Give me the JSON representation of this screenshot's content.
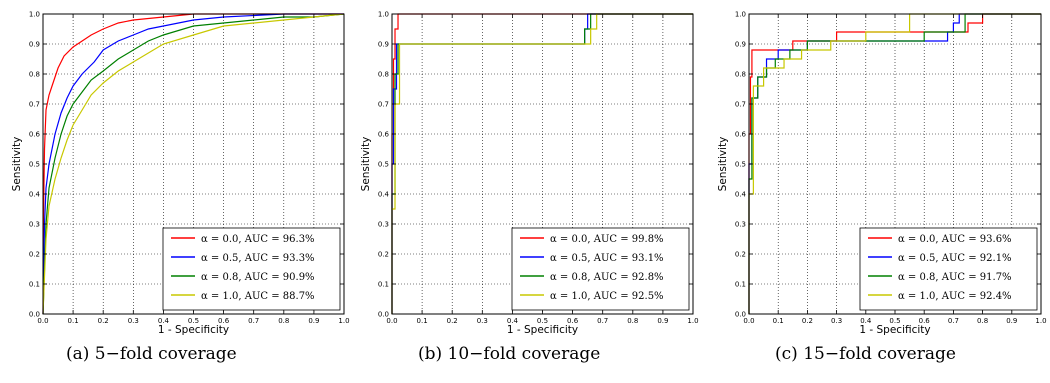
{
  "colors": {
    "alpha_0_0": "#ff0000",
    "alpha_0_5": "#0000ff",
    "alpha_0_8": "#008000",
    "alpha_1_0": "#c8c800",
    "grid": "#000000"
  },
  "captions": [
    "(a) 5−fold coverage",
    "(b) 10−fold coverage",
    "(c) 15−fold coverage"
  ],
  "chart_data": [
    {
      "type": "line",
      "xlabel": "1 - Specificity",
      "ylabel": "Sensitivity",
      "xlim": [
        0,
        1
      ],
      "ylim": [
        0,
        1
      ],
      "xticks": [
        "0.0",
        "0.1",
        "0.2",
        "0.3",
        "0.4",
        "0.5",
        "0.6",
        "0.7",
        "0.8",
        "0.9",
        "1.0"
      ],
      "yticks": [
        "0.0",
        "0.1",
        "0.2",
        "0.3",
        "0.4",
        "0.5",
        "0.6",
        "0.7",
        "0.8",
        "0.9",
        "1.0"
      ],
      "grid": true,
      "legend_position": "lower-right",
      "series": [
        {
          "name": "α = 0.0, AUC = 96.3%",
          "color": "#ff0000",
          "x": [
            0,
            0.002,
            0.005,
            0.01,
            0.02,
            0.03,
            0.05,
            0.07,
            0.1,
            0.13,
            0.16,
            0.2,
            0.25,
            0.3,
            0.4,
            0.5,
            0.6,
            0.8,
            1.0
          ],
          "y": [
            0,
            0.35,
            0.55,
            0.68,
            0.73,
            0.76,
            0.82,
            0.86,
            0.89,
            0.91,
            0.93,
            0.95,
            0.97,
            0.98,
            0.99,
            1.0,
            1.0,
            1.0,
            1.0
          ]
        },
        {
          "name": "α = 0.5, AUC = 93.3%",
          "color": "#0000ff",
          "x": [
            0,
            0.005,
            0.01,
            0.02,
            0.04,
            0.06,
            0.08,
            0.1,
            0.13,
            0.17,
            0.2,
            0.25,
            0.3,
            0.35,
            0.4,
            0.5,
            0.6,
            0.8,
            1.0
          ],
          "y": [
            0,
            0.3,
            0.42,
            0.5,
            0.6,
            0.67,
            0.72,
            0.76,
            0.8,
            0.84,
            0.88,
            0.91,
            0.93,
            0.95,
            0.96,
            0.98,
            0.99,
            1.0,
            1.0
          ]
        },
        {
          "name": "α = 0.8, AUC = 90.9%",
          "color": "#008000",
          "x": [
            0,
            0.01,
            0.02,
            0.04,
            0.06,
            0.08,
            0.1,
            0.13,
            0.16,
            0.2,
            0.25,
            0.3,
            0.35,
            0.4,
            0.5,
            0.6,
            0.7,
            0.8,
            0.9,
            1.0
          ],
          "y": [
            0,
            0.3,
            0.42,
            0.52,
            0.6,
            0.66,
            0.7,
            0.74,
            0.78,
            0.81,
            0.85,
            0.88,
            0.91,
            0.93,
            0.96,
            0.97,
            0.98,
            0.99,
            0.99,
            1.0
          ]
        },
        {
          "name": "α = 1.0, AUC = 88.7%",
          "color": "#c8c800",
          "x": [
            0,
            0.01,
            0.02,
            0.04,
            0.06,
            0.08,
            0.1,
            0.13,
            0.16,
            0.2,
            0.25,
            0.3,
            0.35,
            0.4,
            0.5,
            0.6,
            0.7,
            0.8,
            0.9,
            1.0
          ],
          "y": [
            0,
            0.25,
            0.36,
            0.45,
            0.52,
            0.58,
            0.63,
            0.68,
            0.73,
            0.77,
            0.81,
            0.84,
            0.87,
            0.9,
            0.93,
            0.96,
            0.97,
            0.98,
            0.99,
            1.0
          ]
        }
      ]
    },
    {
      "type": "line",
      "xlabel": "1 - Specificity",
      "ylabel": "Sensitivity",
      "xlim": [
        0,
        1
      ],
      "ylim": [
        0,
        1
      ],
      "xticks": [
        "0.0",
        "0.1",
        "0.2",
        "0.3",
        "0.4",
        "0.5",
        "0.6",
        "0.7",
        "0.8",
        "0.9",
        "1.0"
      ],
      "yticks": [
        "0.0",
        "0.1",
        "0.2",
        "0.3",
        "0.4",
        "0.5",
        "0.6",
        "0.7",
        "0.8",
        "0.9",
        "1.0"
      ],
      "grid": true,
      "legend_position": "lower-right",
      "series": [
        {
          "name": "α = 0.0, AUC = 99.8%",
          "color": "#ff0000",
          "x": [
            0,
            0,
            0.005,
            0.005,
            0.01,
            0.01,
            0.02,
            0.02,
            1.0
          ],
          "y": [
            0,
            0.6,
            0.6,
            0.85,
            0.85,
            0.95,
            0.95,
            1.0,
            1.0
          ]
        },
        {
          "name": "α = 0.5, AUC = 93.1%",
          "color": "#0000ff",
          "x": [
            0,
            0,
            0.005,
            0.005,
            0.015,
            0.015,
            0.64,
            0.64,
            0.65,
            0.65,
            1.0
          ],
          "y": [
            0,
            0.5,
            0.5,
            0.75,
            0.75,
            0.9,
            0.9,
            0.95,
            0.95,
            1.0,
            1.0
          ]
        },
        {
          "name": "α = 0.8, AUC = 92.8%",
          "color": "#008000",
          "x": [
            0,
            0,
            0.01,
            0.01,
            0.02,
            0.02,
            0.64,
            0.64,
            0.66,
            0.66,
            1.0
          ],
          "y": [
            0,
            0.4,
            0.4,
            0.8,
            0.8,
            0.9,
            0.9,
            0.95,
            0.95,
            1.0,
            1.0
          ]
        },
        {
          "name": "α = 1.0, AUC = 92.5%",
          "color": "#c8c800",
          "x": [
            0,
            0,
            0.01,
            0.01,
            0.025,
            0.025,
            0.66,
            0.66,
            0.68,
            0.68,
            1.0
          ],
          "y": [
            0,
            0.35,
            0.35,
            0.7,
            0.7,
            0.9,
            0.9,
            0.95,
            0.95,
            1.0,
            1.0
          ]
        }
      ]
    },
    {
      "type": "line",
      "xlabel": "1 - Specificity",
      "ylabel": "Sensitivity",
      "xlim": [
        0,
        1
      ],
      "ylim": [
        0,
        1
      ],
      "xticks": [
        "0.0",
        "0.1",
        "0.2",
        "0.3",
        "0.4",
        "0.5",
        "0.6",
        "0.7",
        "0.8",
        "0.9",
        "1.0"
      ],
      "yticks": [
        "0.0",
        "0.1",
        "0.2",
        "0.3",
        "0.4",
        "0.5",
        "0.6",
        "0.7",
        "0.8",
        "0.9",
        "1.0"
      ],
      "grid": true,
      "legend_position": "lower-right",
      "series": [
        {
          "name": "α = 0.0, AUC = 93.6%",
          "color": "#ff0000",
          "x": [
            0,
            0,
            0.005,
            0.005,
            0.01,
            0.01,
            0.15,
            0.15,
            0.3,
            0.3,
            0.75,
            0.75,
            0.8,
            0.8,
            1.0
          ],
          "y": [
            0,
            0.6,
            0.6,
            0.79,
            0.79,
            0.88,
            0.88,
            0.91,
            0.91,
            0.94,
            0.94,
            0.97,
            0.97,
            1.0,
            1.0
          ]
        },
        {
          "name": "α = 0.5, AUC = 92.1%",
          "color": "#0000ff",
          "x": [
            0,
            0,
            0.01,
            0.01,
            0.03,
            0.03,
            0.06,
            0.06,
            0.1,
            0.1,
            0.2,
            0.2,
            0.68,
            0.68,
            0.7,
            0.7,
            0.72,
            0.72,
            1.0
          ],
          "y": [
            0,
            0.5,
            0.5,
            0.72,
            0.72,
            0.79,
            0.79,
            0.85,
            0.85,
            0.88,
            0.88,
            0.91,
            0.91,
            0.94,
            0.94,
            0.97,
            0.97,
            1.0,
            1.0
          ]
        },
        {
          "name": "α = 0.8, AUC = 91.7%",
          "color": "#008000",
          "x": [
            0,
            0,
            0.01,
            0.01,
            0.03,
            0.03,
            0.06,
            0.06,
            0.09,
            0.09,
            0.14,
            0.14,
            0.2,
            0.2,
            0.6,
            0.6,
            0.74,
            0.74,
            1.0
          ],
          "y": [
            0,
            0.45,
            0.45,
            0.72,
            0.72,
            0.79,
            0.79,
            0.82,
            0.82,
            0.85,
            0.85,
            0.88,
            0.88,
            0.91,
            0.91,
            0.94,
            0.94,
            1.0,
            1.0
          ]
        },
        {
          "name": "α = 1.0, AUC = 92.4%",
          "color": "#c8c800",
          "x": [
            0,
            0,
            0.015,
            0.015,
            0.05,
            0.05,
            0.12,
            0.12,
            0.18,
            0.18,
            0.28,
            0.28,
            0.4,
            0.4,
            0.55,
            0.55,
            1.0
          ],
          "y": [
            0,
            0.4,
            0.4,
            0.76,
            0.76,
            0.82,
            0.82,
            0.85,
            0.85,
            0.88,
            0.88,
            0.91,
            0.91,
            0.94,
            0.94,
            1.0,
            1.0
          ]
        }
      ]
    }
  ]
}
